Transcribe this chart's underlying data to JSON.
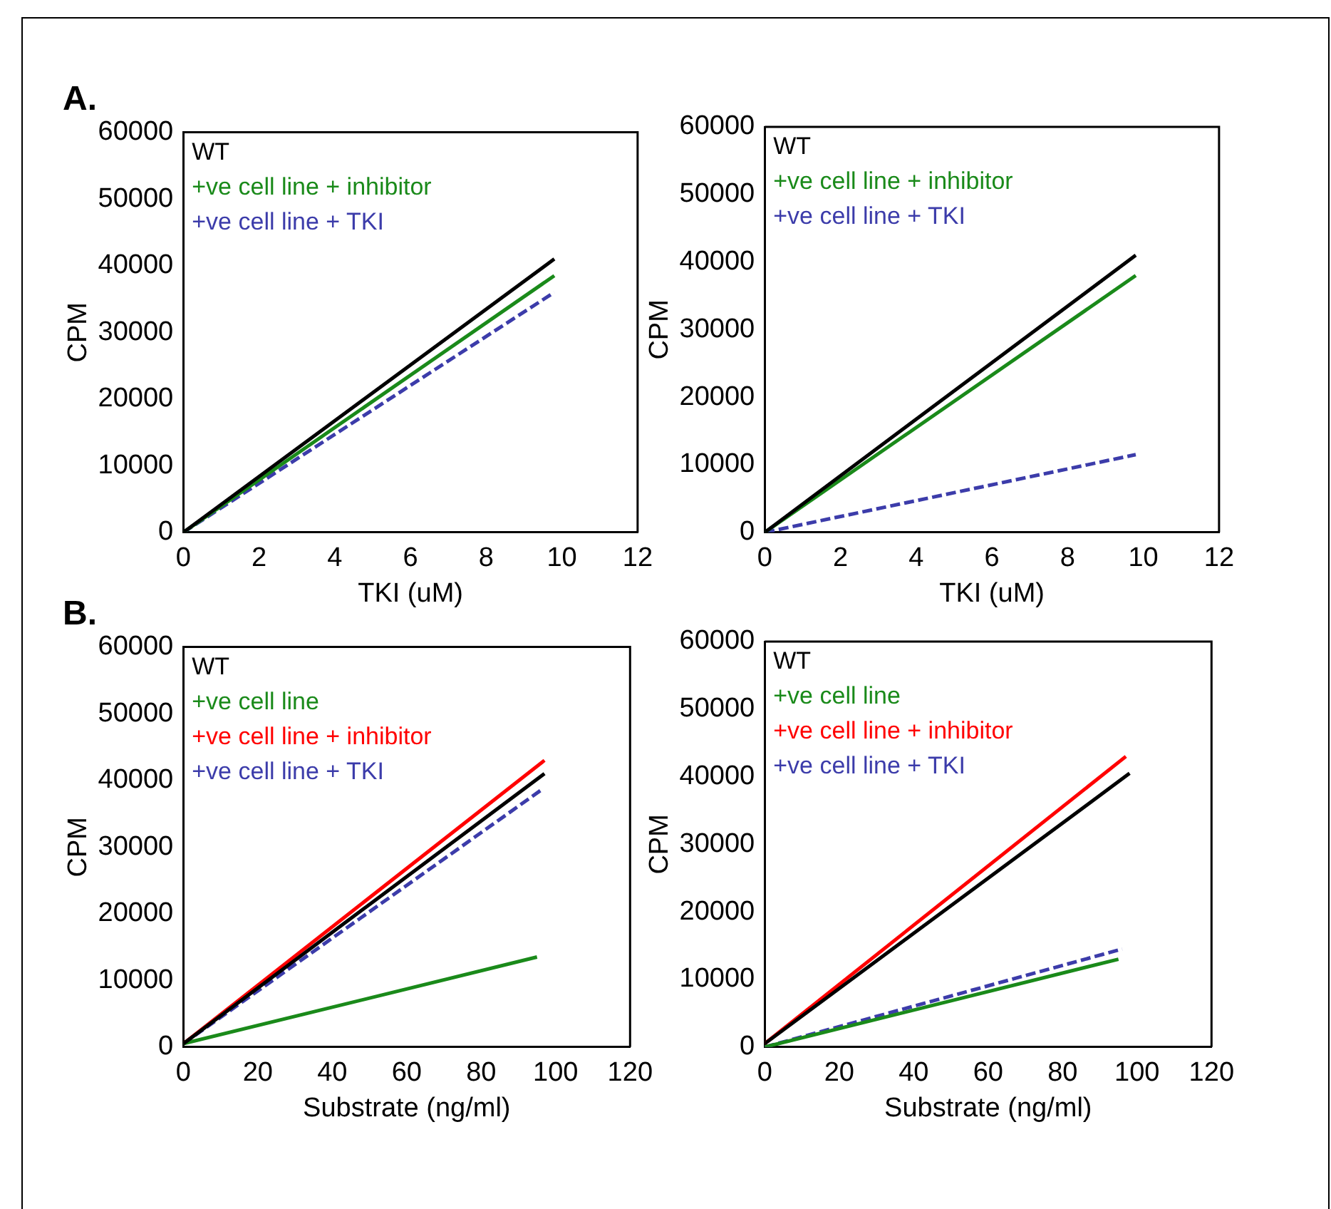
{
  "chart_data": [
    {
      "type": "line",
      "title": "A.",
      "xlabel": "TKI (uM)",
      "ylabel": "CPM",
      "xlim": [
        0,
        12
      ],
      "xticks": [
        0,
        2,
        4,
        6,
        8,
        10,
        12
      ],
      "ylim": [
        0,
        60000
      ],
      "yticks": [
        0,
        10000,
        20000,
        30000,
        40000,
        50000,
        60000
      ],
      "legend": "top left",
      "grid": false,
      "marker": "none",
      "series": [
        {
          "name": "WT",
          "color": "#000000",
          "x": [
            0,
            9.8
          ],
          "values": [
            0,
            41000
          ]
        },
        {
          "name": "+ve cell line + inhibitor",
          "color": "#1a8a1a",
          "x": [
            0,
            9.8
          ],
          "values": [
            0,
            38500
          ]
        },
        {
          "name": "+ve cell line + TKI",
          "color": "#3c3caa",
          "line_style": "dashed",
          "x": [
            0,
            9.8
          ],
          "values": [
            0,
            36000
          ]
        }
      ]
    },
    {
      "type": "line",
      "xlabel": "TKI (uM)",
      "ylabel": "CPM",
      "xlim": [
        0,
        12
      ],
      "xticks": [
        0,
        2,
        4,
        6,
        8,
        10,
        12
      ],
      "ylim": [
        0,
        60000
      ],
      "yticks": [
        0,
        10000,
        20000,
        30000,
        40000,
        50000,
        60000
      ],
      "legend": "top left",
      "grid": false,
      "marker": "none",
      "series": [
        {
          "name": "WT",
          "color": "#000000",
          "x": [
            0,
            9.8
          ],
          "values": [
            0,
            41000
          ]
        },
        {
          "name": "+ve cell line + inhibitor",
          "color": "#1a8a1a",
          "x": [
            0,
            9.8
          ],
          "values": [
            0,
            38000
          ]
        },
        {
          "name": "+ve cell line + TKI",
          "color": "#3c3caa",
          "line_style": "dashed",
          "x": [
            0,
            9.8
          ],
          "values": [
            0,
            11500
          ]
        }
      ]
    },
    {
      "type": "line",
      "title": "B.",
      "xlabel": "Substrate (ng/ml)",
      "ylabel": "CPM",
      "xlim": [
        0,
        120
      ],
      "xticks": [
        0,
        20,
        40,
        60,
        80,
        100,
        120
      ],
      "ylim": [
        0,
        60000
      ],
      "yticks": [
        0,
        10000,
        20000,
        30000,
        40000,
        50000,
        60000
      ],
      "legend": "top left",
      "grid": false,
      "marker": "none",
      "series": [
        {
          "name": "WT",
          "color": "#000000",
          "x": [
            0,
            97
          ],
          "values": [
            500,
            41000
          ]
        },
        {
          "name": "+ve cell line",
          "color": "#1a8a1a",
          "x": [
            0,
            95
          ],
          "values": [
            500,
            13500
          ]
        },
        {
          "name": "+ve cell line + inhibitor",
          "color": "#ff0000",
          "x": [
            0,
            97
          ],
          "values": [
            500,
            43000
          ]
        },
        {
          "name": "+ve cell line + TKI",
          "color": "#3c3caa",
          "line_style": "dashed",
          "x": [
            0,
            96
          ],
          "values": [
            500,
            38500
          ]
        }
      ]
    },
    {
      "type": "line",
      "xlabel": "Substrate (ng/ml)",
      "ylabel": "CPM",
      "xlim": [
        0,
        120
      ],
      "xticks": [
        0,
        20,
        40,
        60,
        80,
        100,
        120
      ],
      "ylim": [
        0,
        60000
      ],
      "yticks": [
        0,
        10000,
        20000,
        30000,
        40000,
        50000,
        60000
      ],
      "legend": "top left",
      "grid": false,
      "marker": "none",
      "series": [
        {
          "name": "WT",
          "color": "#000000",
          "x": [
            0,
            98
          ],
          "values": [
            500,
            40500
          ]
        },
        {
          "name": "+ve cell line",
          "color": "#1a8a1a",
          "x": [
            0,
            95
          ],
          "values": [
            0,
            13000
          ]
        },
        {
          "name": "+ve cell line + inhibitor",
          "color": "#ff0000",
          "x": [
            0,
            97
          ],
          "values": [
            500,
            43000
          ]
        },
        {
          "name": "+ve cell line + TKI",
          "color": "#3c3caa",
          "line_style": "dashed",
          "x": [
            0,
            96
          ],
          "values": [
            0,
            14500
          ]
        }
      ]
    }
  ]
}
